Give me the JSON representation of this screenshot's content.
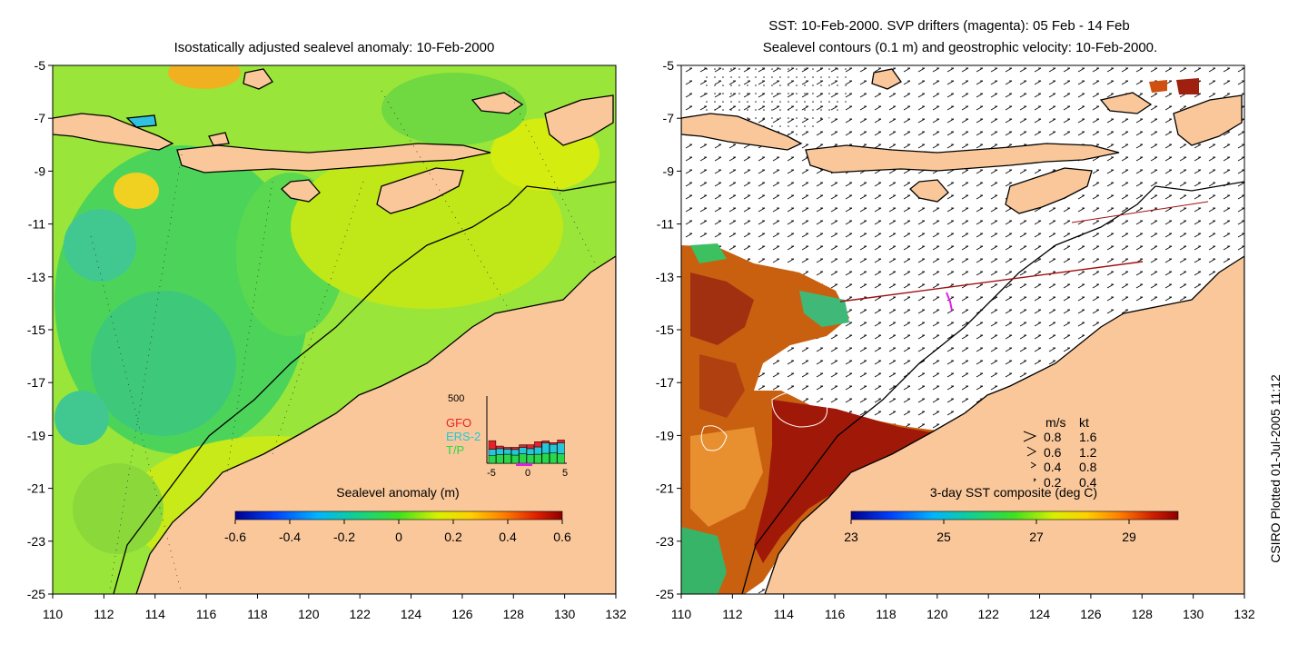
{
  "left_panel": {
    "title": "Isostatically adjusted sealevel anomaly: 10-Feb-2000",
    "colorbar_label": "Sealevel anomaly (m)",
    "colorbar_ticks": [
      "-0.6",
      "-0.4",
      "-0.2",
      "0",
      "0.2",
      "0.4",
      "0.6"
    ],
    "inset": {
      "ymax_label": "500",
      "legend": [
        "GFO",
        "ERS-2",
        "T/P"
      ],
      "xticks": [
        "-5",
        "0",
        "5"
      ],
      "colors": {
        "gfo": "#e8202a",
        "ers2": "#22c8d8",
        "tp": "#28d84a"
      },
      "bars_tp": [
        35,
        40,
        42,
        38,
        44,
        40,
        42,
        46,
        48,
        44
      ],
      "bars_ers2": [
        30,
        28,
        24,
        26,
        30,
        28,
        34,
        48,
        40,
        50
      ],
      "bars_gfo": [
        40,
        12,
        8,
        10,
        12,
        18,
        24,
        10,
        8,
        14
      ]
    }
  },
  "right_panel": {
    "title_line1": "SST: 10-Feb-2000. SVP drifters (magenta): 05 Feb - 14 Feb",
    "title_line2": "Sealevel contours (0.1 m) and geostrophic velocity: 10-Feb-2000.",
    "colorbar_label": "3-day SST composite (deg C)",
    "colorbar_ticks": [
      "23",
      "25",
      "27",
      "29"
    ],
    "velocity_legend": {
      "header_ms": "m/s",
      "header_kt": "kt",
      "rows": [
        {
          "ms": "0.8",
          "kt": "1.6"
        },
        {
          "ms": "0.6",
          "kt": "1.2"
        },
        {
          "ms": "0.4",
          "kt": "0.8"
        },
        {
          "ms": "0.2",
          "kt": "0.4"
        }
      ]
    }
  },
  "axes": {
    "y_ticks": [
      "-5",
      "-7",
      "-9",
      "-11",
      "-13",
      "-15",
      "-17",
      "-19",
      "-21",
      "-23",
      "-25"
    ],
    "x_ticks": [
      "110",
      "112",
      "114",
      "116",
      "118",
      "120",
      "122",
      "124",
      "126",
      "128",
      "130",
      "132"
    ]
  },
  "credit": "CSIRO Plotted 01-Jul-2005 11:12",
  "colors": {
    "land": "#f9c79a",
    "drifter": "#e020e0"
  }
}
